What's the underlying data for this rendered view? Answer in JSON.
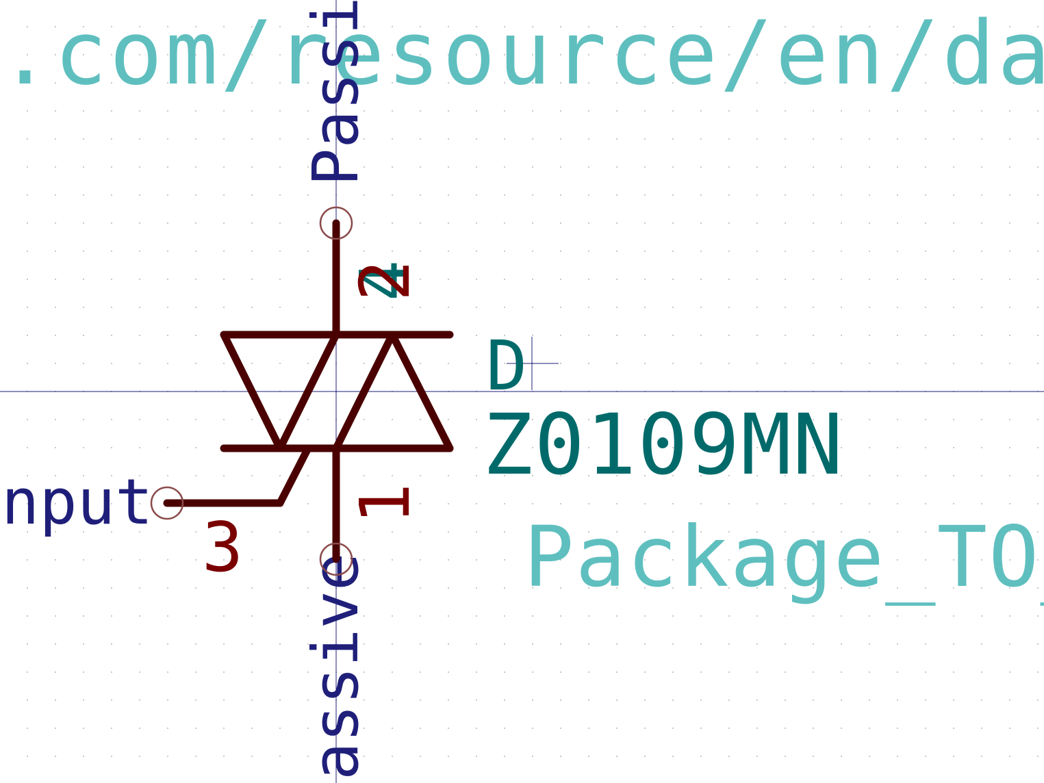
{
  "schematic": {
    "datasheet_text": ".com/resource/en/datas",
    "reference": "D",
    "value": "Z0109MN",
    "footprint": "Package_TO_",
    "pins": {
      "top": {
        "number": "2",
        "type": "Passive"
      },
      "bottom": {
        "number": "1",
        "type": "assive"
      },
      "gate": {
        "number": "3",
        "type": "nput"
      },
      "unit_marker": "4"
    }
  },
  "colors": {
    "background": "#ffffff",
    "grid_dot": "#c8c8c8",
    "body": "#4a0000",
    "pin_number": "#7a0000",
    "pin_end_circle": "#8a4a4a",
    "pin_type": "#1f1f7a",
    "field_value": "#006a6a",
    "field_dim": "#5fbfbf",
    "crosshair": "#1f1f7a"
  }
}
